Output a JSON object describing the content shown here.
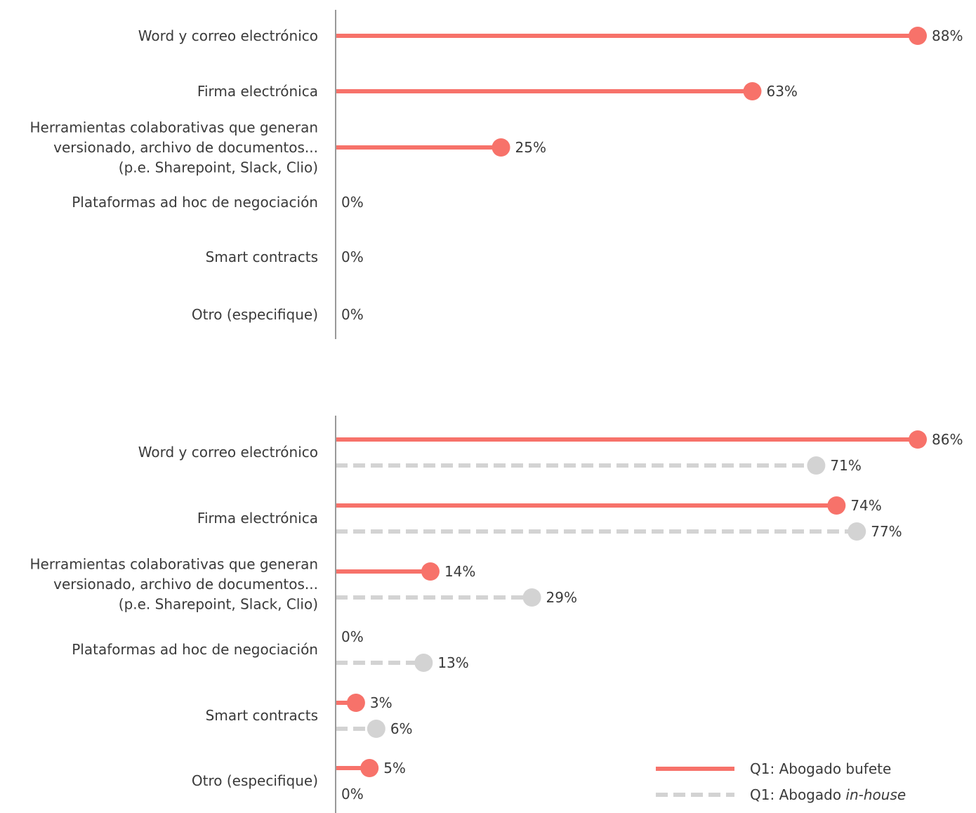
{
  "chart_data": [
    {
      "type": "lollipop",
      "categories": [
        [
          "Word y correo electrónico"
        ],
        [
          "Firma electrónica"
        ],
        [
          "Herramientas colaborativas que generan",
          "versionado, archivo de documentos...",
          "(p.e. Sharepoint, Slack, Clio)"
        ],
        [
          "Plataformas ad hoc de negociación"
        ],
        [
          "Smart contracts"
        ],
        [
          "Otro (especifique)"
        ]
      ],
      "series": [
        {
          "values": [
            88,
            63,
            25,
            0,
            0,
            0
          ],
          "labels": [
            "88%",
            "63%",
            "25%",
            "0%",
            "0%",
            "0%"
          ],
          "color": "#f7726a",
          "style": "solid"
        }
      ],
      "xlim": [
        0,
        88
      ],
      "grid": false
    },
    {
      "type": "lollipop",
      "categories": [
        [
          "Word y correo electrónico"
        ],
        [
          "Firma electrónica"
        ],
        [
          "Herramientas colaborativas que generan",
          "versionado, archivo de documentos...",
          "(p.e. Sharepoint, Slack, Clio)"
        ],
        [
          "Plataformas ad hoc de negociación"
        ],
        [
          "Smart contracts"
        ],
        [
          "Otro (especifique)"
        ]
      ],
      "series": [
        {
          "name": "Q1: Abogado bufete",
          "values": [
            86,
            74,
            14,
            0,
            3,
            5
          ],
          "labels": [
            "86%",
            "74%",
            "14%",
            "0%",
            "3%",
            "5%"
          ],
          "color": "#f7726a",
          "style": "solid"
        },
        {
          "name": "Q1: Abogado in-house",
          "values": [
            71,
            77,
            29,
            13,
            6,
            0
          ],
          "labels": [
            "71%",
            "77%",
            "29%",
            "13%",
            "6%",
            "0%"
          ],
          "color": "#d3d3d3",
          "style": "dashed"
        }
      ],
      "xlim": [
        0,
        86
      ],
      "grid": false,
      "legend": {
        "placement": "bottom-right",
        "items": [
          {
            "prefix": "Q1: Abogado ",
            "emph": "bufete",
            "italic": false,
            "color": "#f7726a",
            "style": "solid"
          },
          {
            "prefix": "Q1: Abogado ",
            "emph": "in-house",
            "italic": true,
            "color": "#d3d3d3",
            "style": "dashed"
          }
        ]
      }
    }
  ]
}
